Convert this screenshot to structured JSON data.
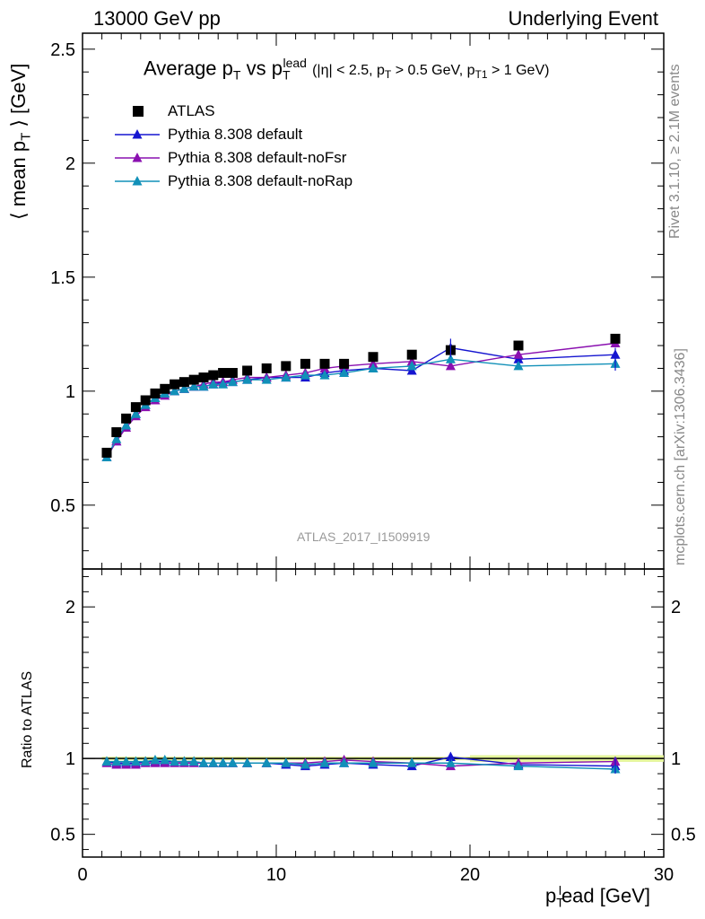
{
  "header": {
    "left": "13000 GeV pp",
    "right": "Underlying Event"
  },
  "side_labels": {
    "rivet": "Rivet 3.1.10, ≥ 2.1M events",
    "mcplots": "mcplots.cern.ch [arXiv:1306.3436]"
  },
  "watermark": "ATLAS_2017_I1509919",
  "chart_data": [
    {
      "type": "scatter",
      "title": "Average p_T vs p_T^lead (|η| < 2.5, p_T > 0.5 GeV, p_T1 > 1 GeV)",
      "title_main": "Average p",
      "title_sub1": "T",
      "title_vs": " vs p",
      "title_sub2": "T",
      "title_sup2": "lead",
      "title_cut1": "(|η| < 2.5, p",
      "title_cut_sub1": "T",
      "title_cut2": " > 0.5 GeV, p",
      "title_cut_sub2": "T1",
      "title_cut3": " > 1 GeV)",
      "ylabel": "⟨ mean p_T ⟩ [GeV]",
      "ylabel_main": "⟨ mean p",
      "ylabel_sub": "T",
      "ylabel_end": " ⟩ [GeV]",
      "xlim": [
        0,
        30
      ],
      "ylim": [
        0.22,
        2.57
      ],
      "yticks": [
        "0.5",
        "1",
        "1.5",
        "2",
        "2.5"
      ],
      "ytick_values": [
        0.5,
        1,
        1.5,
        2,
        2.5
      ],
      "legend": "top-left",
      "x": [
        1.25,
        1.75,
        2.25,
        2.75,
        3.25,
        3.75,
        4.25,
        4.75,
        5.25,
        5.75,
        6.25,
        6.75,
        7.25,
        7.75,
        8.5,
        9.5,
        10.5,
        11.5,
        12.5,
        13.5,
        15,
        17,
        19,
        22.5,
        27.5
      ],
      "series": [
        {
          "name": "ATLAS",
          "color": "#000000",
          "marker": "square",
          "values": [
            0.73,
            0.82,
            0.88,
            0.93,
            0.96,
            0.99,
            1.01,
            1.03,
            1.04,
            1.05,
            1.06,
            1.07,
            1.08,
            1.08,
            1.09,
            1.1,
            1.11,
            1.12,
            1.12,
            1.12,
            1.15,
            1.16,
            1.18,
            1.2,
            1.23
          ]
        },
        {
          "name": "Pythia 8.308 default",
          "color": "#1515d0",
          "marker": "triangle",
          "values": [
            0.71,
            0.78,
            0.85,
            0.9,
            0.94,
            0.97,
            0.99,
            1.0,
            1.01,
            1.02,
            1.02,
            1.03,
            1.04,
            1.04,
            1.05,
            1.06,
            1.06,
            1.06,
            1.08,
            1.09,
            1.1,
            1.09,
            1.19,
            1.14,
            1.16
          ]
        },
        {
          "name": "Pythia 8.308 default-noFsr",
          "color": "#8a10b0",
          "marker": "triangle",
          "values": [
            0.71,
            0.78,
            0.84,
            0.89,
            0.93,
            0.96,
            0.98,
            1.0,
            1.01,
            1.02,
            1.03,
            1.04,
            1.04,
            1.05,
            1.06,
            1.06,
            1.07,
            1.08,
            1.1,
            1.11,
            1.12,
            1.13,
            1.11,
            1.16,
            1.21
          ]
        },
        {
          "name": "Pythia 8.308 default-noRap",
          "color": "#1190b8",
          "marker": "triangle",
          "values": [
            0.71,
            0.79,
            0.85,
            0.9,
            0.94,
            0.97,
            0.99,
            1.0,
            1.01,
            1.02,
            1.02,
            1.03,
            1.03,
            1.04,
            1.05,
            1.05,
            1.06,
            1.07,
            1.07,
            1.08,
            1.1,
            1.11,
            1.14,
            1.11,
            1.12
          ]
        }
      ]
    },
    {
      "type": "scatter",
      "ylabel": "Ratio to ATLAS",
      "xlabel": "p_T^lead [GeV]",
      "xlabel_main": "p",
      "xlabel_sub": "T",
      "xlabel_sup": "l",
      "xlabel_end": "ead [GeV]",
      "xlim": [
        0,
        30
      ],
      "ylim": [
        0.35,
        2.25
      ],
      "xticks": [
        "0",
        "10",
        "20",
        "30"
      ],
      "xtick_values": [
        0,
        10,
        20,
        30
      ],
      "yticks": [
        "0.5",
        "1",
        "2"
      ],
      "ytick_values": [
        0.5,
        1,
        2
      ],
      "ratio_series": [
        {
          "name": "Pythia 8.308 default",
          "color": "#1515d0",
          "values": [
            0.98,
            0.97,
            0.97,
            0.97,
            0.98,
            0.98,
            0.98,
            0.98,
            0.98,
            0.98,
            0.97,
            0.97,
            0.97,
            0.97,
            0.97,
            0.97,
            0.96,
            0.95,
            0.96,
            0.97,
            0.96,
            0.95,
            1.01,
            0.96,
            0.95
          ]
        },
        {
          "name": "Pythia 8.308 default-noFsr",
          "color": "#8a10b0",
          "values": [
            0.97,
            0.96,
            0.96,
            0.96,
            0.97,
            0.97,
            0.97,
            0.97,
            0.97,
            0.97,
            0.97,
            0.97,
            0.97,
            0.97,
            0.97,
            0.97,
            0.97,
            0.97,
            0.98,
            0.99,
            0.98,
            0.97,
            0.95,
            0.97,
            0.98
          ]
        },
        {
          "name": "Pythia 8.308 default-noRap",
          "color": "#1190b8",
          "values": [
            0.98,
            0.98,
            0.98,
            0.98,
            0.98,
            0.99,
            0.99,
            0.98,
            0.98,
            0.98,
            0.97,
            0.97,
            0.97,
            0.97,
            0.97,
            0.97,
            0.97,
            0.96,
            0.97,
            0.97,
            0.97,
            0.97,
            0.97,
            0.95,
            0.93
          ]
        }
      ]
    }
  ]
}
